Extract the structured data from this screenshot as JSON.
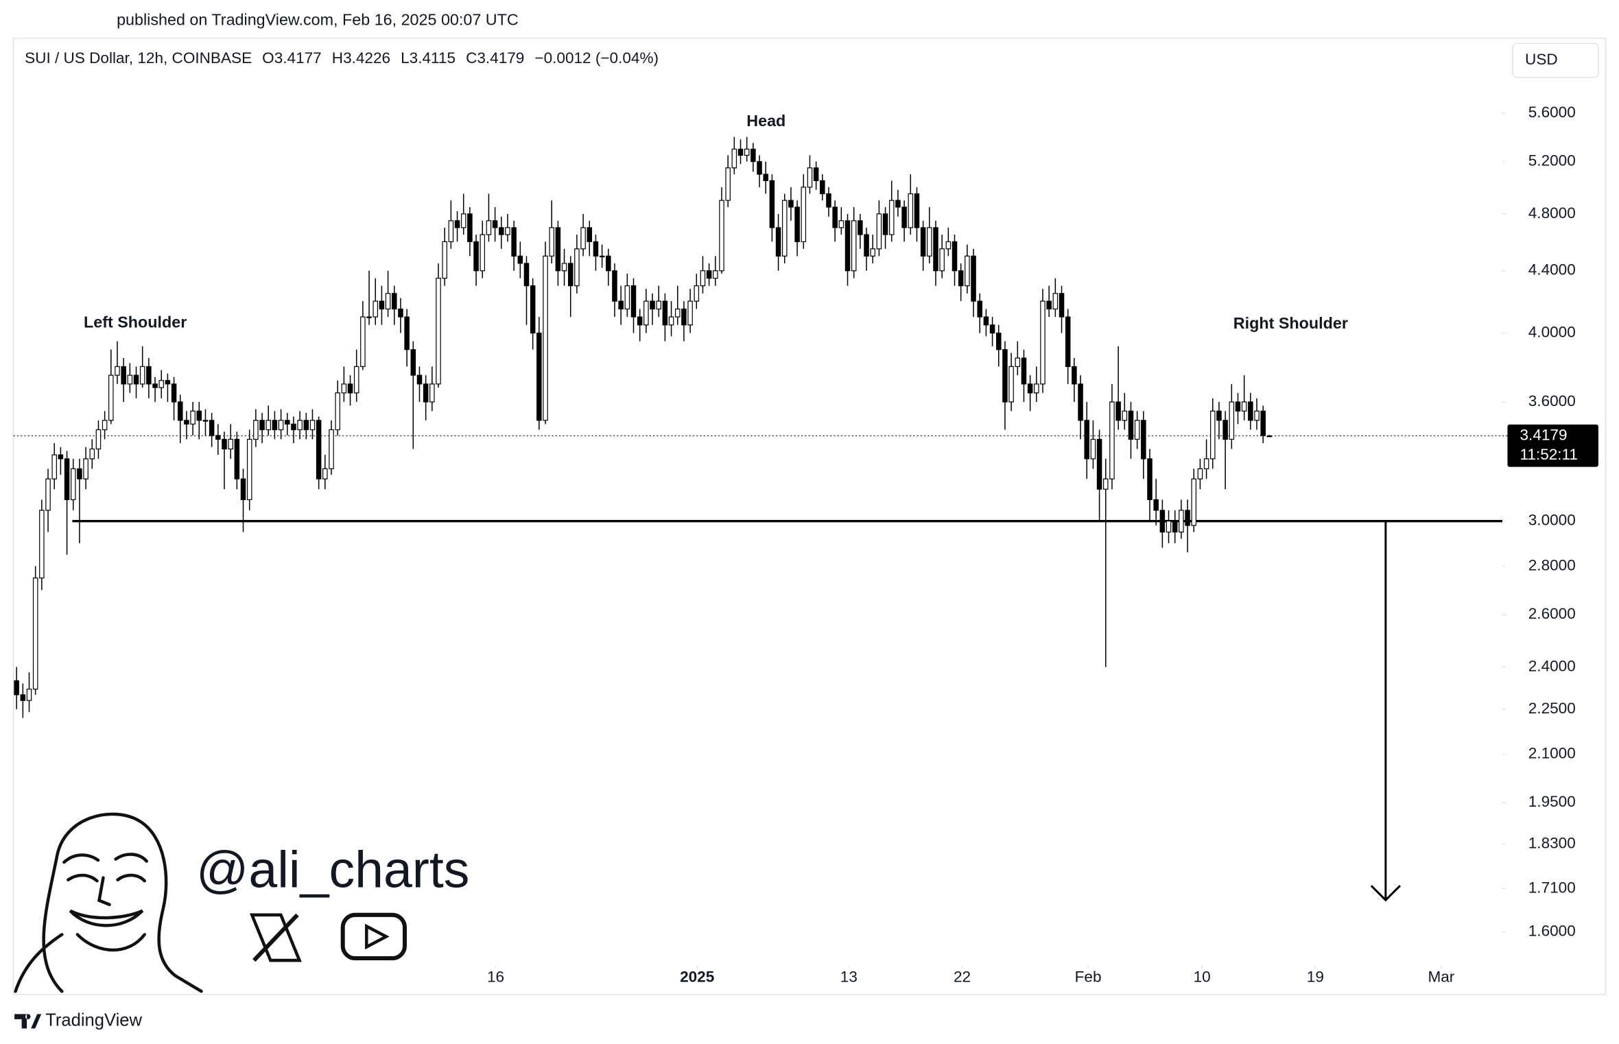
{
  "chart_data": {
    "type": "candlestick",
    "published": "published on TradingView.com, Feb 16, 2025 00:07 UTC",
    "title": "SUI / US Dollar, 12h, COINBASE",
    "quote": [
      "O3.4177",
      "H3.4226",
      "L3.4115",
      "C3.4179",
      "−0.0012 (−0.04%)"
    ],
    "currency": "USD",
    "log_scale": true,
    "grid": false,
    "bull_color": "#ffffff",
    "bear_color": "#000000",
    "outline_color": "#000000",
    "xlim": [
      -0.5,
      236
    ],
    "xticks": [
      {
        "value": 76.1,
        "label": "16"
      },
      {
        "value": 108.1,
        "label": "2025"
      },
      {
        "value": 132.2,
        "label": "13"
      },
      {
        "value": 150.2,
        "label": "22"
      },
      {
        "value": 170.2,
        "label": "Feb"
      },
      {
        "value": 188.3,
        "label": "10"
      },
      {
        "value": 206.3,
        "label": "19"
      },
      {
        "value": 226.3,
        "label": "Mar"
      }
    ],
    "ylim": [
      1.52,
      6.28
    ],
    "yticks": [
      {
        "value": 5.6,
        "label": "5.6000"
      },
      {
        "value": 5.2,
        "label": "5.2000"
      },
      {
        "value": 4.8,
        "label": "4.8000"
      },
      {
        "value": 4.4,
        "label": "4.4000"
      },
      {
        "value": 4.0,
        "label": "4.0000"
      },
      {
        "value": 3.6,
        "label": "3.6000"
      },
      {
        "value": 3.0,
        "label": "3.0000"
      },
      {
        "value": 2.8,
        "label": "2.8000"
      },
      {
        "value": 2.6,
        "label": "2.6000"
      },
      {
        "value": 2.4,
        "label": "2.4000"
      },
      {
        "value": 2.25,
        "label": "2.2500"
      },
      {
        "value": 2.1,
        "label": "2.1000"
      },
      {
        "value": 1.95,
        "label": "1.9500"
      },
      {
        "value": 1.83,
        "label": "1.8300"
      },
      {
        "value": 1.71,
        "label": "1.7100"
      },
      {
        "value": 1.6,
        "label": "1.6000"
      }
    ],
    "last_price": 3.4179,
    "countdown": "11:52:11",
    "neckline": 3.0,
    "target": 1.68,
    "annotations": [
      "Left Shoulder",
      "Head",
      "Right Shoulder"
    ],
    "watermark": "@ali_charts",
    "brand": "TradingView",
    "ohlc": [
      [
        2.35,
        2.4,
        2.25,
        2.3
      ],
      [
        2.3,
        2.34,
        2.22,
        2.28
      ],
      [
        2.28,
        2.38,
        2.24,
        2.32
      ],
      [
        2.32,
        2.8,
        2.3,
        2.75
      ],
      [
        2.75,
        3.1,
        2.7,
        3.05
      ],
      [
        3.05,
        3.25,
        2.95,
        3.2
      ],
      [
        3.2,
        3.38,
        3.15,
        3.32
      ],
      [
        3.32,
        3.36,
        3.22,
        3.3
      ],
      [
        3.3,
        3.34,
        2.85,
        3.1
      ],
      [
        3.1,
        3.3,
        3.05,
        3.25
      ],
      [
        3.25,
        3.3,
        2.9,
        3.2
      ],
      [
        3.2,
        3.36,
        3.15,
        3.3
      ],
      [
        3.3,
        3.4,
        3.25,
        3.35
      ],
      [
        3.35,
        3.5,
        3.3,
        3.45
      ],
      [
        3.45,
        3.55,
        3.4,
        3.5
      ],
      [
        3.5,
        3.9,
        3.48,
        3.75
      ],
      [
        3.75,
        3.95,
        3.7,
        3.8
      ],
      [
        3.8,
        3.85,
        3.6,
        3.7
      ],
      [
        3.7,
        3.82,
        3.65,
        3.75
      ],
      [
        3.75,
        3.8,
        3.62,
        3.7
      ],
      [
        3.7,
        3.92,
        3.68,
        3.8
      ],
      [
        3.8,
        3.85,
        3.62,
        3.7
      ],
      [
        3.7,
        3.74,
        3.6,
        3.68
      ],
      [
        3.68,
        3.78,
        3.62,
        3.72
      ],
      [
        3.72,
        3.76,
        3.6,
        3.7
      ],
      [
        3.7,
        3.74,
        3.5,
        3.6
      ],
      [
        3.6,
        3.64,
        3.38,
        3.5
      ],
      [
        3.5,
        3.55,
        3.4,
        3.48
      ],
      [
        3.48,
        3.6,
        3.42,
        3.55
      ],
      [
        3.55,
        3.6,
        3.4,
        3.5
      ],
      [
        3.5,
        3.56,
        3.42,
        3.5
      ],
      [
        3.5,
        3.54,
        3.36,
        3.42
      ],
      [
        3.42,
        3.48,
        3.32,
        3.4
      ],
      [
        3.4,
        3.44,
        3.15,
        3.35
      ],
      [
        3.35,
        3.48,
        3.3,
        3.4
      ],
      [
        3.4,
        3.44,
        3.15,
        3.2
      ],
      [
        3.2,
        3.25,
        2.95,
        3.1
      ],
      [
        3.1,
        3.45,
        3.05,
        3.4
      ],
      [
        3.4,
        3.56,
        3.36,
        3.5
      ],
      [
        3.5,
        3.54,
        3.38,
        3.45
      ],
      [
        3.45,
        3.58,
        3.42,
        3.5
      ],
      [
        3.5,
        3.55,
        3.4,
        3.45
      ],
      [
        3.45,
        3.56,
        3.4,
        3.5
      ],
      [
        3.5,
        3.54,
        3.42,
        3.48
      ],
      [
        3.48,
        3.52,
        3.38,
        3.45
      ],
      [
        3.45,
        3.55,
        3.4,
        3.5
      ],
      [
        3.5,
        3.54,
        3.4,
        3.45
      ],
      [
        3.45,
        3.56,
        3.4,
        3.5
      ],
      [
        3.5,
        3.52,
        3.15,
        3.2
      ],
      [
        3.2,
        3.32,
        3.15,
        3.25
      ],
      [
        3.25,
        3.5,
        3.22,
        3.45
      ],
      [
        3.45,
        3.72,
        3.42,
        3.65
      ],
      [
        3.65,
        3.8,
        3.6,
        3.7
      ],
      [
        3.7,
        3.75,
        3.58,
        3.65
      ],
      [
        3.65,
        3.9,
        3.6,
        3.8
      ],
      [
        3.8,
        4.2,
        3.78,
        4.1
      ],
      [
        4.1,
        4.4,
        4.05,
        4.1
      ],
      [
        4.1,
        4.35,
        4.05,
        4.2
      ],
      [
        4.2,
        4.3,
        4.05,
        4.15
      ],
      [
        4.15,
        4.4,
        4.1,
        4.25
      ],
      [
        4.25,
        4.3,
        4.05,
        4.15
      ],
      [
        4.15,
        4.22,
        4.0,
        4.1
      ],
      [
        4.1,
        4.15,
        3.8,
        3.9
      ],
      [
        3.9,
        3.95,
        3.35,
        3.75
      ],
      [
        3.75,
        3.8,
        3.6,
        3.7
      ],
      [
        3.7,
        3.75,
        3.5,
        3.6
      ],
      [
        3.6,
        3.8,
        3.55,
        3.7
      ],
      [
        3.7,
        4.45,
        3.68,
        4.35
      ],
      [
        4.35,
        4.7,
        4.3,
        4.6
      ],
      [
        4.6,
        4.9,
        4.55,
        4.75
      ],
      [
        4.75,
        4.82,
        4.6,
        4.7
      ],
      [
        4.7,
        4.95,
        4.65,
        4.8
      ],
      [
        4.8,
        4.85,
        4.5,
        4.6
      ],
      [
        4.6,
        4.65,
        4.3,
        4.4
      ],
      [
        4.4,
        4.75,
        4.35,
        4.65
      ],
      [
        4.65,
        4.95,
        4.6,
        4.75
      ],
      [
        4.75,
        4.85,
        4.6,
        4.7
      ],
      [
        4.7,
        4.78,
        4.55,
        4.65
      ],
      [
        4.65,
        4.8,
        4.6,
        4.7
      ],
      [
        4.7,
        4.75,
        4.4,
        4.5
      ],
      [
        4.5,
        4.6,
        4.35,
        4.45
      ],
      [
        4.45,
        4.5,
        4.05,
        4.3
      ],
      [
        4.3,
        4.35,
        3.9,
        4.0
      ],
      [
        4.0,
        4.1,
        3.45,
        3.5
      ],
      [
        3.5,
        4.6,
        3.48,
        4.5
      ],
      [
        4.5,
        4.9,
        4.45,
        4.7
      ],
      [
        4.7,
        4.75,
        4.3,
        4.4
      ],
      [
        4.4,
        4.55,
        4.3,
        4.45
      ],
      [
        4.45,
        4.5,
        4.1,
        4.3
      ],
      [
        4.3,
        4.65,
        4.25,
        4.55
      ],
      [
        4.55,
        4.8,
        4.5,
        4.7
      ],
      [
        4.7,
        4.75,
        4.5,
        4.6
      ],
      [
        4.6,
        4.65,
        4.4,
        4.5
      ],
      [
        4.5,
        4.58,
        4.42,
        4.5
      ],
      [
        4.5,
        4.55,
        4.3,
        4.4
      ],
      [
        4.4,
        4.45,
        4.1,
        4.2
      ],
      [
        4.2,
        4.3,
        4.05,
        4.15
      ],
      [
        4.15,
        4.38,
        4.1,
        4.3
      ],
      [
        4.3,
        4.35,
        4.0,
        4.1
      ],
      [
        4.1,
        4.15,
        3.95,
        4.05
      ],
      [
        4.05,
        4.28,
        4.0,
        4.2
      ],
      [
        4.2,
        4.25,
        4.05,
        4.15
      ],
      [
        4.15,
        4.3,
        4.1,
        4.2
      ],
      [
        4.2,
        4.25,
        3.95,
        4.05
      ],
      [
        4.05,
        4.2,
        3.98,
        4.1
      ],
      [
        4.1,
        4.3,
        4.05,
        4.15
      ],
      [
        4.15,
        4.2,
        3.95,
        4.05
      ],
      [
        4.05,
        4.28,
        4.0,
        4.2
      ],
      [
        4.2,
        4.38,
        4.15,
        4.3
      ],
      [
        4.3,
        4.5,
        4.25,
        4.4
      ],
      [
        4.4,
        4.45,
        4.3,
        4.35
      ],
      [
        4.35,
        4.5,
        4.3,
        4.4
      ],
      [
        4.4,
        5.0,
        4.38,
        4.9
      ],
      [
        4.9,
        5.25,
        4.85,
        5.15
      ],
      [
        5.15,
        5.4,
        5.1,
        5.3
      ],
      [
        5.3,
        5.38,
        5.18,
        5.25
      ],
      [
        5.25,
        5.4,
        5.2,
        5.3
      ],
      [
        5.3,
        5.35,
        5.12,
        5.2
      ],
      [
        5.2,
        5.25,
        5.0,
        5.1
      ],
      [
        5.1,
        5.2,
        4.95,
        5.05
      ],
      [
        5.05,
        5.1,
        4.6,
        4.7
      ],
      [
        4.7,
        4.8,
        4.4,
        4.5
      ],
      [
        4.5,
        4.95,
        4.45,
        4.9
      ],
      [
        4.9,
        5.0,
        4.75,
        4.85
      ],
      [
        4.85,
        4.9,
        4.5,
        4.6
      ],
      [
        4.6,
        5.1,
        4.55,
        5.0
      ],
      [
        5.0,
        5.25,
        4.95,
        5.15
      ],
      [
        5.15,
        5.2,
        4.98,
        5.05
      ],
      [
        5.05,
        5.1,
        4.9,
        4.95
      ],
      [
        4.95,
        5.0,
        4.78,
        4.85
      ],
      [
        4.85,
        4.9,
        4.6,
        4.7
      ],
      [
        4.7,
        4.85,
        4.65,
        4.75
      ],
      [
        4.75,
        4.8,
        4.3,
        4.4
      ],
      [
        4.4,
        4.85,
        4.35,
        4.75
      ],
      [
        4.75,
        4.8,
        4.55,
        4.65
      ],
      [
        4.65,
        4.7,
        4.4,
        4.5
      ],
      [
        4.5,
        4.65,
        4.45,
        4.55
      ],
      [
        4.55,
        4.9,
        4.5,
        4.8
      ],
      [
        4.8,
        4.85,
        4.55,
        4.65
      ],
      [
        4.65,
        5.05,
        4.6,
        4.9
      ],
      [
        4.9,
        4.98,
        4.78,
        4.85
      ],
      [
        4.85,
        4.9,
        4.6,
        4.7
      ],
      [
        4.7,
        5.1,
        4.65,
        4.95
      ],
      [
        4.95,
        5.0,
        4.6,
        4.7
      ],
      [
        4.7,
        4.75,
        4.4,
        4.5
      ],
      [
        4.5,
        4.85,
        4.45,
        4.7
      ],
      [
        4.7,
        4.75,
        4.3,
        4.4
      ],
      [
        4.4,
        4.65,
        4.35,
        4.55
      ],
      [
        4.55,
        4.7,
        4.5,
        4.6
      ],
      [
        4.6,
        4.65,
        4.3,
        4.4
      ],
      [
        4.4,
        4.45,
        4.2,
        4.3
      ],
      [
        4.3,
        4.58,
        4.25,
        4.5
      ],
      [
        4.5,
        4.55,
        4.1,
        4.2
      ],
      [
        4.2,
        4.25,
        4.0,
        4.1
      ],
      [
        4.1,
        4.15,
        3.98,
        4.05
      ],
      [
        4.05,
        4.1,
        3.92,
        4.0
      ],
      [
        4.0,
        4.05,
        3.8,
        3.9
      ],
      [
        3.9,
        3.95,
        3.45,
        3.6
      ],
      [
        3.6,
        3.88,
        3.55,
        3.8
      ],
      [
        3.8,
        3.95,
        3.75,
        3.85
      ],
      [
        3.85,
        3.9,
        3.6,
        3.7
      ],
      [
        3.7,
        3.75,
        3.55,
        3.65
      ],
      [
        3.65,
        3.8,
        3.6,
        3.7
      ],
      [
        3.7,
        4.28,
        3.65,
        4.2
      ],
      [
        4.2,
        4.3,
        4.1,
        4.15
      ],
      [
        4.15,
        4.35,
        4.1,
        4.25
      ],
      [
        4.25,
        4.3,
        4.0,
        4.1
      ],
      [
        4.1,
        4.15,
        3.7,
        3.8
      ],
      [
        3.8,
        3.85,
        3.6,
        3.7
      ],
      [
        3.7,
        3.75,
        3.4,
        3.5
      ],
      [
        3.5,
        3.6,
        3.2,
        3.3
      ],
      [
        3.3,
        3.5,
        3.25,
        3.4
      ],
      [
        3.4,
        3.45,
        3.0,
        3.15
      ],
      [
        3.15,
        3.3,
        2.4,
        3.2
      ],
      [
        3.2,
        3.7,
        3.15,
        3.6
      ],
      [
        3.6,
        3.92,
        3.45,
        3.5
      ],
      [
        3.5,
        3.65,
        3.45,
        3.55
      ],
      [
        3.55,
        3.6,
        3.3,
        3.4
      ],
      [
        3.4,
        3.55,
        3.35,
        3.5
      ],
      [
        3.5,
        3.55,
        3.2,
        3.3
      ],
      [
        3.3,
        3.35,
        3.0,
        3.1
      ],
      [
        3.1,
        3.2,
        2.98,
        3.05
      ],
      [
        3.05,
        3.1,
        2.88,
        2.95
      ],
      [
        2.95,
        3.05,
        2.9,
        3.0
      ],
      [
        3.0,
        3.05,
        2.9,
        2.95
      ],
      [
        2.95,
        3.1,
        2.92,
        3.05
      ],
      [
        3.05,
        3.1,
        2.86,
        2.98
      ],
      [
        2.98,
        3.25,
        2.95,
        3.2
      ],
      [
        3.2,
        3.3,
        3.15,
        3.25
      ],
      [
        3.25,
        3.4,
        3.2,
        3.3
      ],
      [
        3.3,
        3.62,
        3.25,
        3.55
      ],
      [
        3.55,
        3.6,
        3.4,
        3.5
      ],
      [
        3.5,
        3.55,
        3.15,
        3.4
      ],
      [
        3.4,
        3.7,
        3.35,
        3.6
      ],
      [
        3.6,
        3.65,
        3.48,
        3.55
      ],
      [
        3.55,
        3.75,
        3.5,
        3.6
      ],
      [
        3.6,
        3.65,
        3.45,
        3.5
      ],
      [
        3.5,
        3.62,
        3.45,
        3.55
      ],
      [
        3.55,
        3.58,
        3.38,
        3.42
      ],
      [
        3.4177,
        3.4226,
        3.4115,
        3.4179
      ]
    ]
  }
}
